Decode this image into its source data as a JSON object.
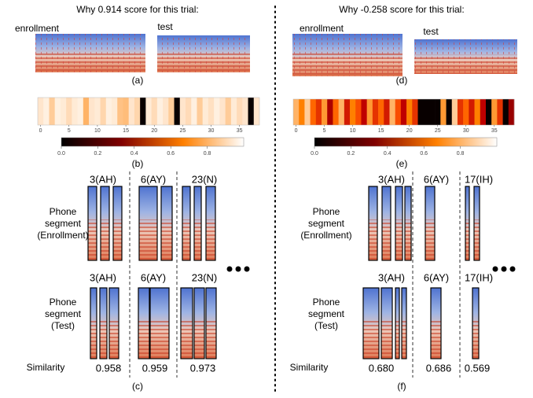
{
  "panels": [
    {
      "title": "Why 0.914 score for this trial:",
      "enrollment_label": "enrollment",
      "test_label": "test",
      "spec_caption": "(a)",
      "strip": {
        "cells": [
          0.95,
          0.97,
          0.9,
          0.97,
          0.96,
          0.93,
          0.96,
          0.97,
          0.85,
          0.95,
          0.96,
          0.92,
          0.97,
          0.96,
          0.88,
          0.87,
          0.95,
          0.92,
          0.02,
          0.96,
          0.93,
          0.97,
          0.95,
          0.9,
          0.02,
          0.95,
          0.93,
          0.97,
          0.9,
          0.96,
          0.94,
          0.97,
          0.95,
          0.9,
          0.96,
          0.93,
          0.95,
          0.02,
          0.95
        ],
        "ticks": [
          0,
          5,
          10,
          15,
          20,
          25,
          30,
          35
        ]
      },
      "colorbar_ticks": [
        {
          "value": 0,
          "label": "0.0"
        },
        {
          "value": 0.2,
          "label": "0.2"
        },
        {
          "value": 0.4,
          "label": "0.4"
        },
        {
          "value": 0.6,
          "label": "0.6"
        },
        {
          "value": 0.8,
          "label": "0.8"
        }
      ],
      "strip_caption": "(b)",
      "enroll_row_label": [
        "Phone",
        "segment",
        "(Enrollment)"
      ],
      "test_row_label": [
        "Phone",
        "segment",
        "(Test)"
      ],
      "similarity_label": "Similarity",
      "phones": [
        {
          "label": "3(AH)",
          "test_label": "3(AH)",
          "similarity": "0.958"
        },
        {
          "label": "6(AY)",
          "test_label": "6(AY)",
          "similarity": "0.959"
        },
        {
          "label": "23(N)",
          "test_label": "23(N)",
          "similarity": "0.973"
        }
      ],
      "caption": "(c)"
    },
    {
      "title": "Why -0.258 score for this trial:",
      "enrollment_label": "enrollment",
      "test_label": "test",
      "spec_caption": "(d)",
      "strip": {
        "cells": [
          0.85,
          0.75,
          0.9,
          0.7,
          0.6,
          0.8,
          0.45,
          0.7,
          0.85,
          0.55,
          0.75,
          0.65,
          0.5,
          0.8,
          0.6,
          0.7,
          0.55,
          0.85,
          0.65,
          0.5,
          0.75,
          0.6,
          0.02,
          0.02,
          0.02,
          0.02,
          0.8,
          0.02,
          0.9,
          0.6,
          0.7,
          0.55,
          0.75,
          0.5,
          0.02,
          0.8,
          0.6,
          0.02,
          0.4
        ],
        "ticks": [
          0,
          5,
          10,
          15,
          20,
          25,
          30,
          35
        ]
      },
      "colorbar_ticks": [
        {
          "value": 0,
          "label": "0.0"
        },
        {
          "value": 0.2,
          "label": "0.2"
        },
        {
          "value": 0.4,
          "label": "0.4"
        },
        {
          "value": 0.6,
          "label": "0.6"
        },
        {
          "value": 0.8,
          "label": "0.8"
        }
      ],
      "strip_caption": "(e)",
      "enroll_row_label": [
        "Phone",
        "segment",
        "(Enrollment)"
      ],
      "test_row_label": [
        "Phone",
        "segment",
        "(Test)"
      ],
      "similarity_label": "Similarity",
      "phones": [
        {
          "label": "3(AH)",
          "test_label": "3(AH)",
          "similarity": "0.680"
        },
        {
          "label": "6(AY)",
          "test_label": "6(AY)",
          "similarity": "0.686"
        },
        {
          "label": "17(IH)",
          "test_label": "17(IH)",
          "similarity": "0.569"
        }
      ],
      "caption": "(f)"
    }
  ]
}
